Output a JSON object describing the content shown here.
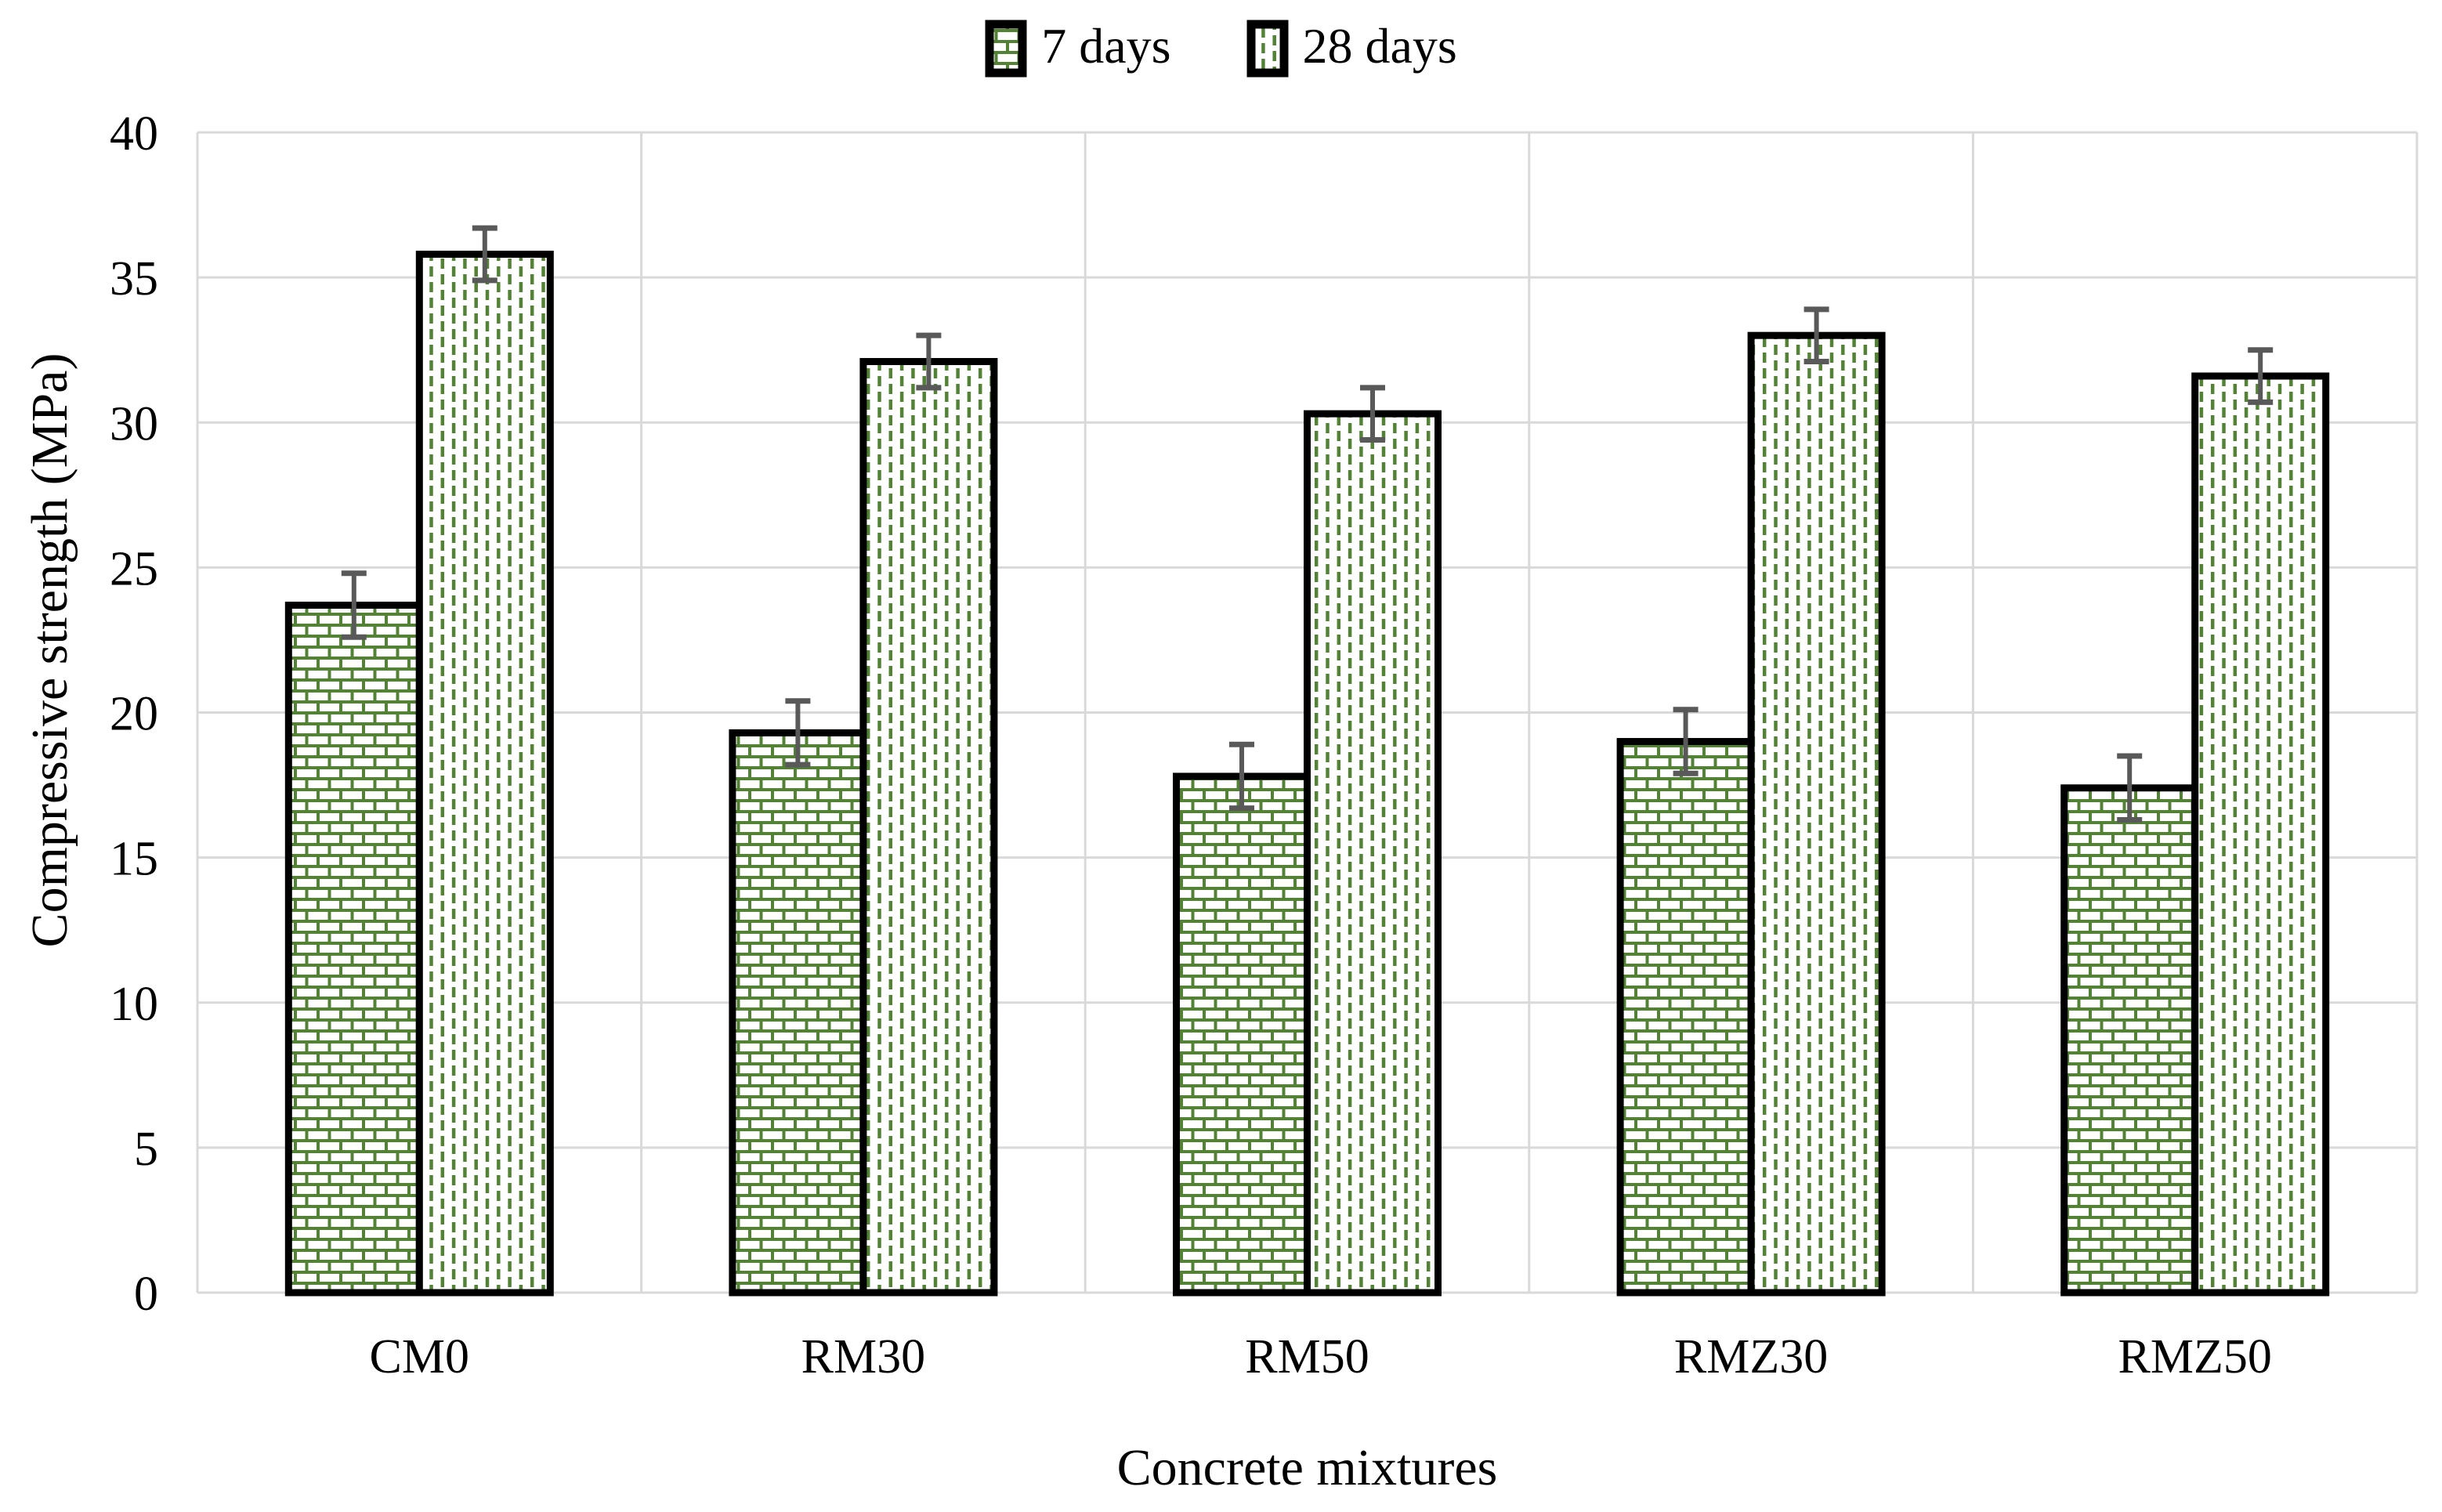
{
  "chart_data": {
    "type": "bar",
    "title": "",
    "categories": [
      "CM0",
      "RM30",
      "RM50",
      "RMZ30",
      "RMZ50"
    ],
    "series": [
      {
        "name": "7 days",
        "pattern": "brick",
        "values": [
          23.7,
          19.3,
          17.8,
          19.0,
          17.4
        ],
        "errors": [
          1.1,
          1.1,
          1.1,
          1.1,
          1.1
        ]
      },
      {
        "name": "28 days",
        "pattern": "dash",
        "values": [
          35.8,
          32.1,
          30.3,
          33.0,
          31.6
        ],
        "errors": [
          0.9,
          0.9,
          0.9,
          0.9,
          0.9
        ]
      }
    ],
    "xlabel": "Concrete mixtures",
    "ylabel": "Compressive strength (MPa)",
    "ylim": [
      0,
      40
    ],
    "ytick_step": 5,
    "grid": true,
    "legend_position": "top center"
  },
  "colors": {
    "pattern_green": "#538135",
    "bar_border": "#000000",
    "gridline": "#d9d9d9",
    "error_bar": "#595959",
    "text": "#000000",
    "background": "#ffffff"
  }
}
